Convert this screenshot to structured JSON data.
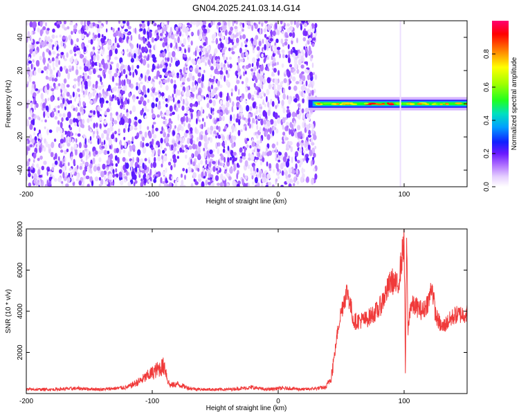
{
  "title": "GN04.2025.241.03.14.G14",
  "chart_data": [
    {
      "type": "heatmap",
      "xlabel": "Height of straight line (km)",
      "ylabel": "Frequency (Hz)",
      "xlim": [
        -200,
        150
      ],
      "ylim": [
        -50,
        50
      ],
      "xticks": [
        -200,
        -100,
        0,
        100
      ],
      "yticks": [
        -40,
        -20,
        0,
        20,
        40
      ],
      "colorbar": {
        "label": "Normalized spectral amplitude",
        "range": [
          0.0,
          1.0
        ],
        "ticks": [
          0.0,
          0.2,
          0.4,
          0.6,
          0.8
        ],
        "tick_labels": [
          "0.0",
          "0.2",
          "0.4",
          "0.6",
          "0.8"
        ]
      },
      "regions": [
        {
          "description": "broadband noise",
          "x_range": [
            -200,
            30
          ],
          "y_range": [
            -50,
            50
          ],
          "amplitude": [
            0.0,
            0.2
          ]
        },
        {
          "description": "signal band",
          "x_range": [
            24,
            150
          ],
          "y_range": [
            -3,
            3
          ],
          "amplitude": [
            0.1,
            1.0
          ]
        }
      ]
    },
    {
      "type": "line",
      "xlabel": "Height of straight line (km)",
      "ylabel": "SNR (10 * v/v)",
      "xlim": [
        -200,
        150
      ],
      "ylim": [
        0,
        8000
      ],
      "xticks": [
        -200,
        -100,
        0,
        100
      ],
      "yticks": [
        2000,
        4000,
        6000,
        8000
      ],
      "series": [
        {
          "color": "#f03030",
          "x": [
            -200,
            -180,
            -160,
            -140,
            -120,
            -110,
            -100,
            -95,
            -90,
            -88,
            -86,
            -80,
            -70,
            -60,
            -50,
            -40,
            -30,
            -20,
            -10,
            0,
            10,
            20,
            30,
            38,
            42,
            45,
            48,
            52,
            55,
            60,
            70,
            80,
            85,
            90,
            95,
            98,
            100,
            101,
            102,
            103,
            105,
            110,
            115,
            120,
            122,
            125,
            130,
            140,
            150
          ],
          "y": [
            200,
            200,
            250,
            200,
            300,
            600,
            1000,
            1200,
            1350,
            700,
            400,
            450,
            250,
            200,
            200,
            200,
            250,
            300,
            200,
            250,
            250,
            200,
            250,
            300,
            800,
            2000,
            3400,
            4500,
            5000,
            3500,
            3600,
            4100,
            4800,
            5500,
            5200,
            6500,
            7500,
            1000,
            7600,
            3000,
            4300,
            4200,
            4000,
            4600,
            5300,
            3800,
            3200,
            3800,
            3900
          ]
        }
      ]
    }
  ]
}
